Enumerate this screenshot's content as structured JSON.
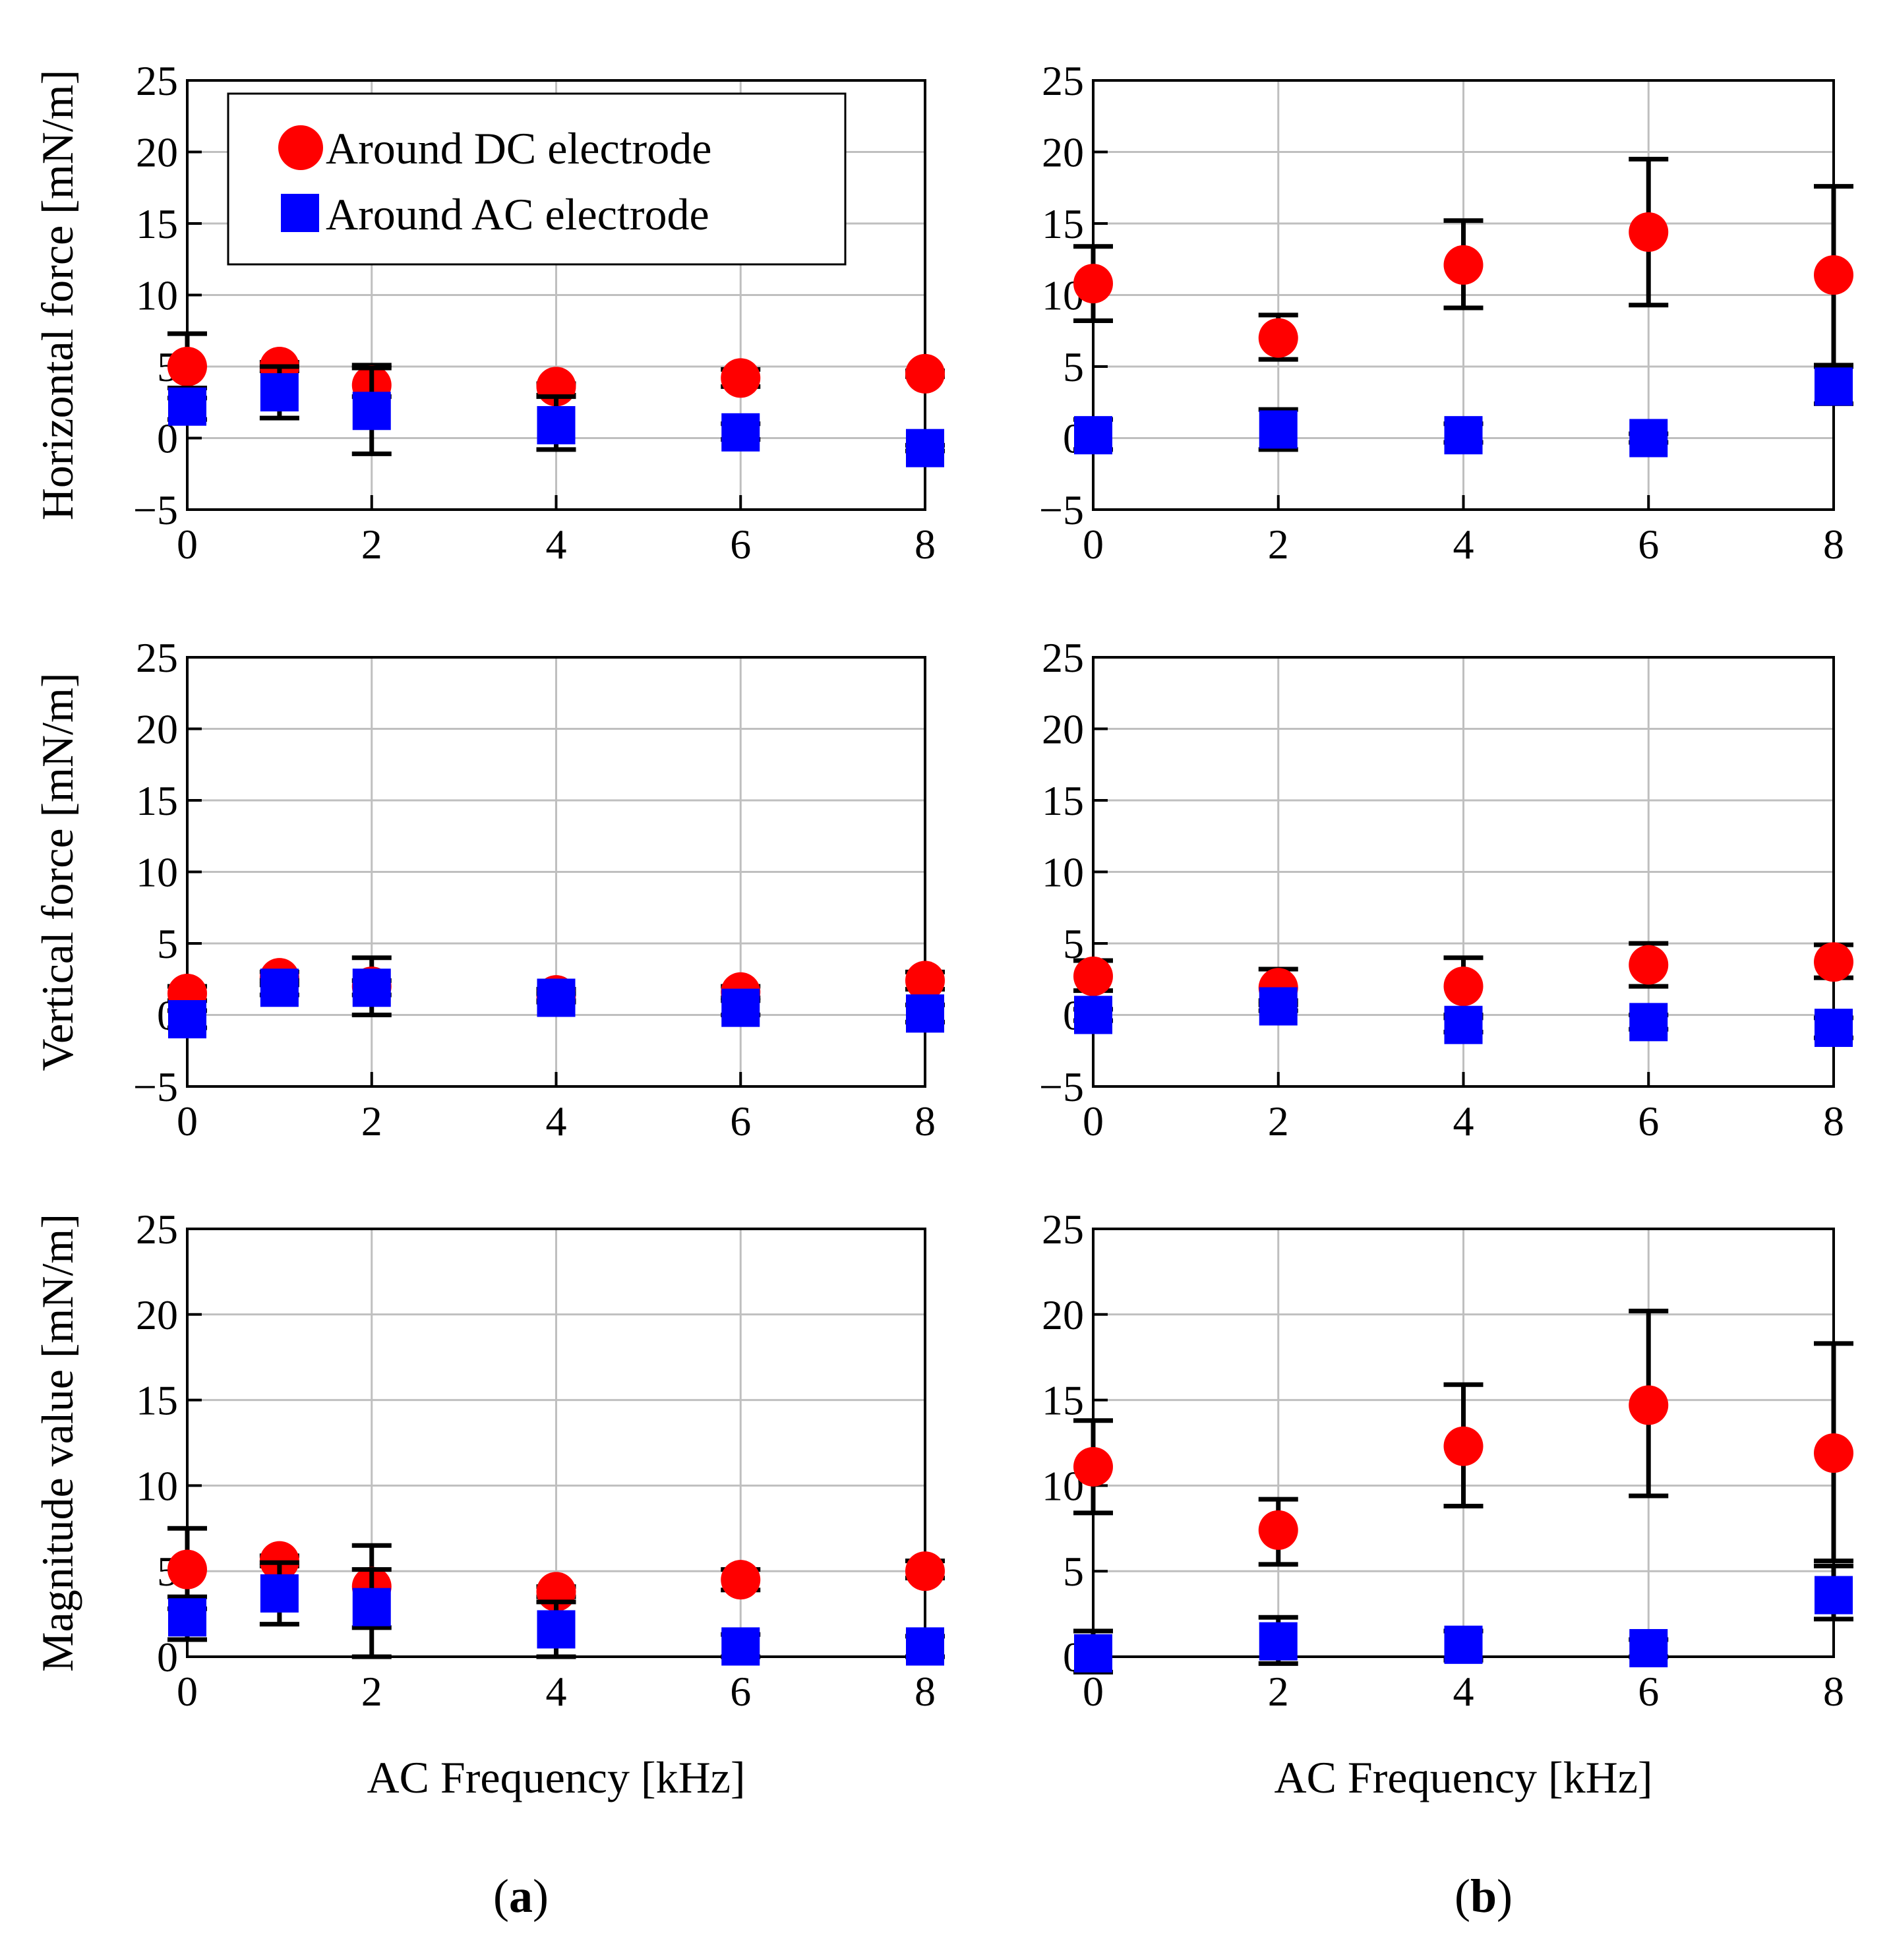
{
  "figure": {
    "label_a": "a",
    "label_b": "b",
    "legend": {
      "dc": "Around DC electrode",
      "ac": "Around AC electrode"
    },
    "colors": {
      "dc": "#ff0000",
      "ac": "#0000ff",
      "grid": "#bfbfbf",
      "frame": "#000000"
    }
  },
  "chart_data": [
    {
      "id": "a-horizontal",
      "type": "scatter",
      "column": "a",
      "row": 0,
      "ylabel": "Horizontal force [mN/m]",
      "xlabel": "",
      "xlim": [
        0,
        8
      ],
      "ylim": [
        -5,
        25
      ],
      "xticks": [
        0,
        2,
        4,
        6,
        8
      ],
      "yticks": [
        -5,
        0,
        5,
        10,
        15,
        20,
        25
      ],
      "legend": "top-left",
      "series": [
        {
          "name": "Around DC electrode",
          "marker": "circle",
          "points": [
            [
              0,
              5.0,
              2.8,
              7.3
            ],
            [
              1,
              5.0,
              4.7,
              5.3
            ],
            [
              2,
              3.7,
              2.9,
              5.1
            ],
            [
              4,
              3.6,
              3.0,
              3.8
            ],
            [
              6,
              4.2,
              3.6,
              4.8
            ],
            [
              8,
              4.5,
              4.3,
              4.7
            ]
          ]
        },
        {
          "name": "Around AC electrode",
          "marker": "square",
          "points": [
            [
              0,
              2.2,
              1.3,
              3.5
            ],
            [
              1,
              3.2,
              1.4,
              5.0
            ],
            [
              2,
              1.9,
              -1.1,
              4.9
            ],
            [
              4,
              0.9,
              -0.8,
              2.9
            ],
            [
              6,
              0.4,
              -0.1,
              1.0
            ],
            [
              8,
              -0.7,
              -0.9,
              -0.5
            ]
          ]
        }
      ]
    },
    {
      "id": "b-horizontal",
      "type": "scatter",
      "column": "b",
      "row": 0,
      "ylabel": "",
      "xlabel": "",
      "xlim": [
        0,
        8
      ],
      "ylim": [
        -5,
        25
      ],
      "xticks": [
        0,
        2,
        4,
        6,
        8
      ],
      "yticks": [
        -5,
        0,
        5,
        10,
        15,
        20,
        25
      ],
      "series": [
        {
          "name": "Around DC electrode",
          "marker": "circle",
          "points": [
            [
              0,
              10.8,
              8.2,
              13.4
            ],
            [
              2,
              7.0,
              5.5,
              8.6
            ],
            [
              4,
              12.1,
              9.1,
              15.2
            ],
            [
              6,
              14.4,
              9.3,
              19.5
            ],
            [
              8,
              11.4,
              5.1,
              17.6
            ]
          ]
        },
        {
          "name": "Around AC electrode",
          "marker": "square",
          "points": [
            [
              0,
              0.2,
              -0.8,
              1.3
            ],
            [
              2,
              0.6,
              -0.8,
              2.0
            ],
            [
              4,
              0.2,
              -0.3,
              1.0
            ],
            [
              6,
              0.0,
              -0.3,
              0.3
            ],
            [
              8,
              3.6,
              2.4,
              5.0
            ]
          ]
        }
      ]
    },
    {
      "id": "a-vertical",
      "type": "scatter",
      "column": "a",
      "row": 1,
      "ylabel": "Vertical force [mN/m]",
      "xlabel": "",
      "xlim": [
        0,
        8
      ],
      "ylim": [
        -5,
        25
      ],
      "xticks": [
        0,
        2,
        4,
        6,
        8
      ],
      "yticks": [
        -5,
        0,
        5,
        10,
        15,
        20,
        25
      ],
      "series": [
        {
          "name": "Around DC electrode",
          "marker": "circle",
          "points": [
            [
              0,
              1.5,
              1.0,
              2.0
            ],
            [
              1,
              2.6,
              2.1,
              3.0
            ],
            [
              2,
              2.0,
              0.0,
              4.0
            ],
            [
              4,
              1.4,
              1.0,
              1.8
            ],
            [
              6,
              1.6,
              1.2,
              2.0
            ],
            [
              8,
              2.4,
              1.8,
              3.0
            ]
          ]
        },
        {
          "name": "Around AC electrode",
          "marker": "square",
          "points": [
            [
              0,
              -0.3,
              -0.9,
              0.3
            ],
            [
              1,
              1.9,
              1.4,
              2.4
            ],
            [
              2,
              1.9,
              1.4,
              2.4
            ],
            [
              4,
              1.2,
              0.9,
              1.5
            ],
            [
              6,
              0.5,
              0.0,
              1.0
            ],
            [
              8,
              0.1,
              -0.5,
              0.7
            ]
          ]
        }
      ]
    },
    {
      "id": "b-vertical",
      "type": "scatter",
      "column": "b",
      "row": 1,
      "ylabel": "",
      "xlabel": "",
      "xlim": [
        0,
        8
      ],
      "ylim": [
        -5,
        25
      ],
      "xticks": [
        0,
        2,
        4,
        6,
        8
      ],
      "yticks": [
        -5,
        0,
        5,
        10,
        15,
        20,
        25
      ],
      "series": [
        {
          "name": "Around DC electrode",
          "marker": "circle",
          "points": [
            [
              0,
              2.7,
              1.7,
              3.8
            ],
            [
              2,
              1.9,
              0.7,
              3.2
            ],
            [
              4,
              2.0,
              0.0,
              4.0
            ],
            [
              6,
              3.5,
              2.0,
              5.0
            ],
            [
              8,
              3.7,
              2.6,
              4.9
            ]
          ]
        },
        {
          "name": "Around AC electrode",
          "marker": "square",
          "points": [
            [
              0,
              0.0,
              -0.4,
              0.4
            ],
            [
              2,
              0.6,
              0.3,
              1.0
            ],
            [
              4,
              -0.7,
              -1.2,
              -0.2
            ],
            [
              6,
              -0.5,
              -1.0,
              0.0
            ],
            [
              8,
              -0.9,
              -1.6,
              -0.2
            ]
          ]
        }
      ]
    },
    {
      "id": "a-magnitude",
      "type": "scatter",
      "column": "a",
      "row": 2,
      "ylabel": "Magnitude value [mN/m]",
      "xlabel": "AC Frequency [kHz]",
      "xlim": [
        0,
        8
      ],
      "ylim": [
        0,
        25
      ],
      "xticks": [
        0,
        2,
        4,
        6,
        8
      ],
      "yticks": [
        0,
        5,
        10,
        15,
        20,
        25
      ],
      "series": [
        {
          "name": "Around DC electrode",
          "marker": "circle",
          "points": [
            [
              0,
              5.1,
              2.8,
              7.5
            ],
            [
              1,
              5.6,
              5.3,
              5.9
            ],
            [
              2,
              4.1,
              1.7,
              6.5
            ],
            [
              4,
              3.8,
              3.5,
              4.1
            ],
            [
              6,
              4.5,
              3.9,
              5.1
            ],
            [
              8,
              5.0,
              4.6,
              5.6
            ]
          ]
        },
        {
          "name": "Around AC electrode",
          "marker": "square",
          "points": [
            [
              0,
              2.3,
              1.0,
              3.5
            ],
            [
              1,
              3.7,
              1.9,
              5.5
            ],
            [
              2,
              2.9,
              0.0,
              5.1
            ],
            [
              4,
              1.6,
              0.0,
              3.2
            ],
            [
              6,
              0.6,
              0.0,
              1.3
            ],
            [
              8,
              0.6,
              0.0,
              1.2
            ]
          ]
        }
      ]
    },
    {
      "id": "b-magnitude",
      "type": "scatter",
      "column": "b",
      "row": 2,
      "ylabel": "",
      "xlabel": "AC Frequency [kHz]",
      "xlim": [
        0,
        8
      ],
      "ylim": [
        0,
        25
      ],
      "xticks": [
        0,
        2,
        4,
        6,
        8
      ],
      "yticks": [
        0,
        5,
        10,
        15,
        20,
        25
      ],
      "series": [
        {
          "name": "Around DC electrode",
          "marker": "circle",
          "points": [
            [
              0,
              11.1,
              8.4,
              13.8
            ],
            [
              2,
              7.4,
              5.4,
              9.2
            ],
            [
              4,
              12.3,
              8.8,
              15.9
            ],
            [
              6,
              14.7,
              9.4,
              20.2
            ],
            [
              8,
              11.9,
              5.6,
              18.3
            ]
          ]
        },
        {
          "name": "Around AC electrode",
          "marker": "square",
          "points": [
            [
              0,
              0.2,
              -0.9,
              1.5
            ],
            [
              2,
              0.9,
              -0.4,
              2.3
            ],
            [
              4,
              0.7,
              -0.2,
              1.5
            ],
            [
              6,
              0.5,
              0.0,
              1.0
            ],
            [
              8,
              3.6,
              2.2,
              5.3
            ]
          ]
        }
      ]
    }
  ]
}
